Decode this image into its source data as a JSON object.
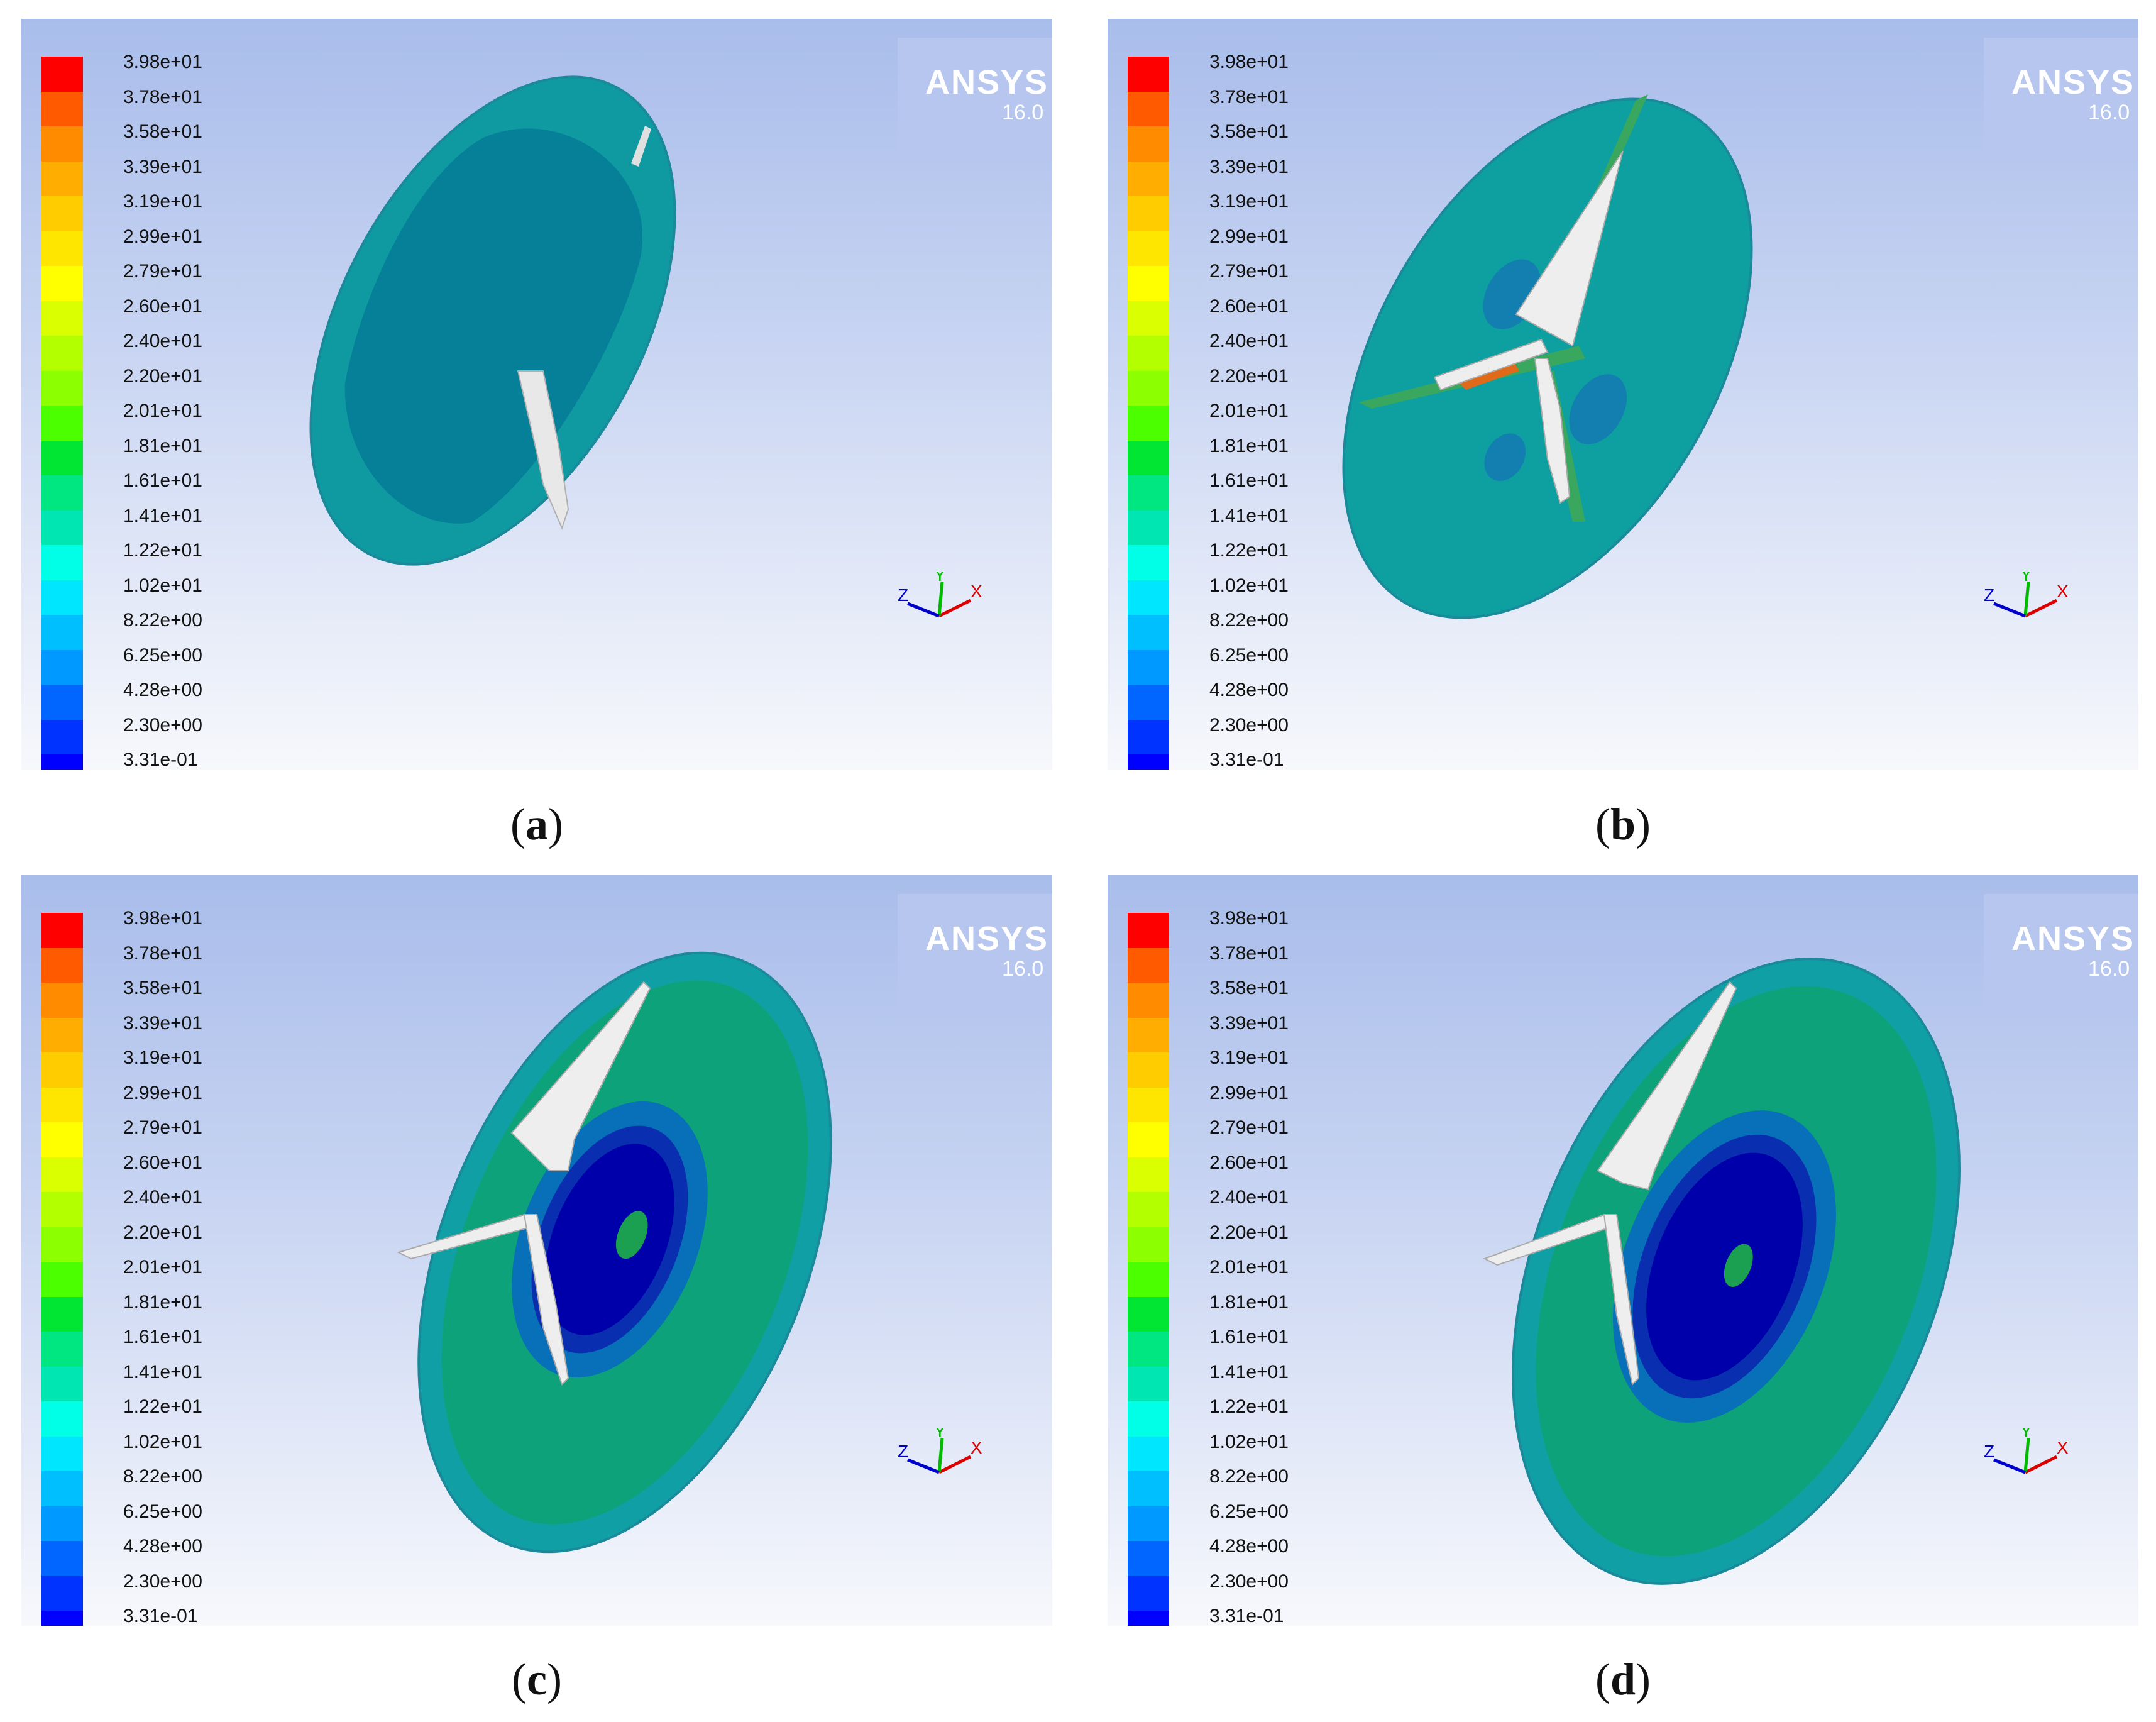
{
  "legend_labels": [
    "3.98e+01",
    "3.78e+01",
    "3.58e+01",
    "3.39e+01",
    "3.19e+01",
    "2.99e+01",
    "2.79e+01",
    "2.60e+01",
    "2.40e+01",
    "2.20e+01",
    "2.01e+01",
    "1.81e+01",
    "1.61e+01",
    "1.41e+01",
    "1.22e+01",
    "1.02e+01",
    "8.22e+00",
    "6.25e+00",
    "4.28e+00",
    "2.30e+00",
    "3.31e-01"
  ],
  "legend_colors": [
    "#ff0000",
    "#ff5a00",
    "#ff8c00",
    "#ffad00",
    "#ffcc00",
    "#ffe600",
    "#ffff00",
    "#d9ff00",
    "#b3ff00",
    "#8cff00",
    "#4cff00",
    "#00e633",
    "#00e680",
    "#00e6b3",
    "#00ffe6",
    "#00e6ff",
    "#00bfff",
    "#0099ff",
    "#0066ff",
    "#0033ff",
    "#0000ff"
  ],
  "logo": {
    "name": "ANSYS",
    "version": "16.0"
  },
  "axis_labels": {
    "x": "X",
    "y": "Y",
    "z": "Z"
  },
  "panels": [
    {
      "letter": "a"
    },
    {
      "letter": "b"
    },
    {
      "letter": "c"
    },
    {
      "letter": "d"
    }
  ]
}
